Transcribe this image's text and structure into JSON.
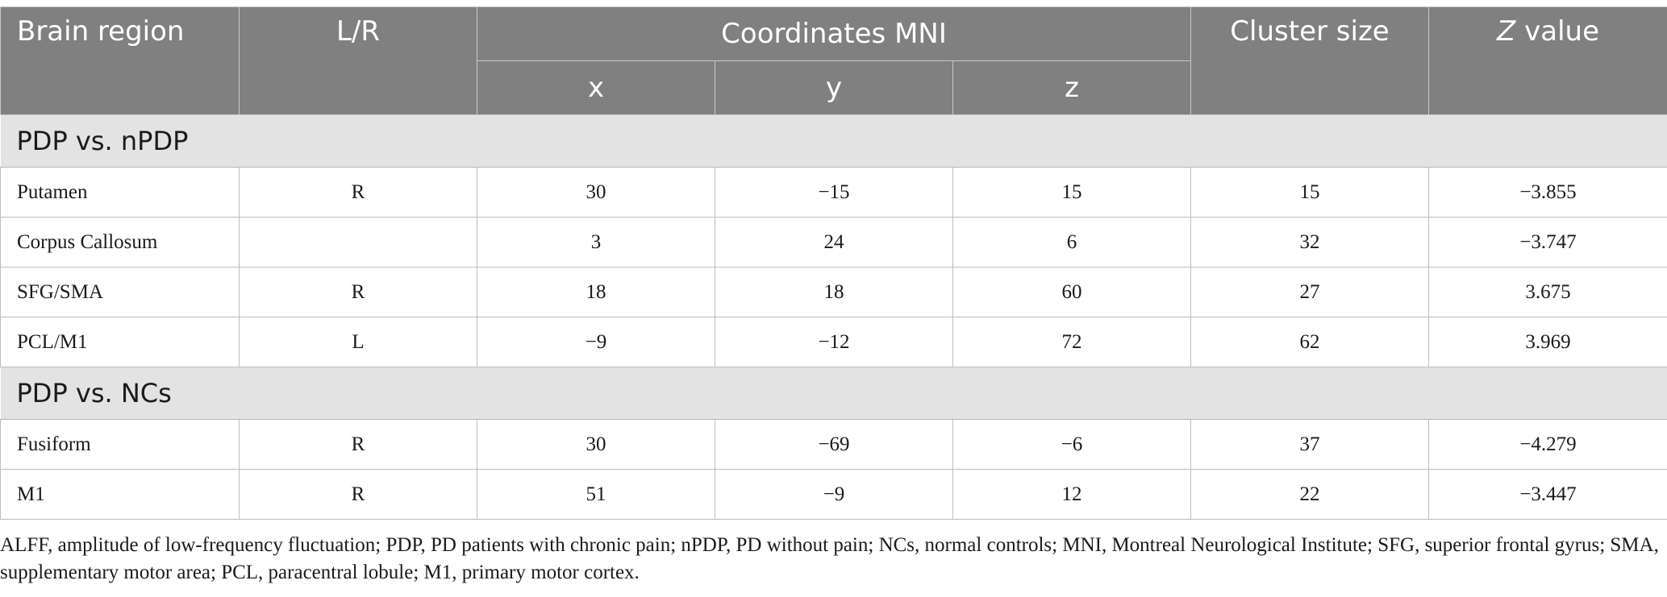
{
  "header": {
    "brain_region": "Brain region",
    "lr": "L/R",
    "coords": "Coordinates MNI",
    "x": "x",
    "y": "y",
    "z": "z",
    "cluster_size": "Cluster size",
    "z_value_italic": "Z",
    "z_value_rest": " value"
  },
  "groups": [
    {
      "label": "PDP vs. nPDP",
      "rows": [
        {
          "region": "Putamen",
          "lr": "R",
          "x": "30",
          "y": "−15",
          "z": "15",
          "cluster": "15",
          "zval": "−3.855"
        },
        {
          "region": "Corpus Callosum",
          "lr": "",
          "x": "3",
          "y": "24",
          "z": "6",
          "cluster": "32",
          "zval": "−3.747"
        },
        {
          "region": "SFG/SMA",
          "lr": "R",
          "x": "18",
          "y": "18",
          "z": "60",
          "cluster": "27",
          "zval": "3.675"
        },
        {
          "region": "PCL/M1",
          "lr": "L",
          "x": "−9",
          "y": "−12",
          "z": "72",
          "cluster": "62",
          "zval": "3.969"
        }
      ]
    },
    {
      "label": "PDP vs. NCs",
      "rows": [
        {
          "region": "Fusiform",
          "lr": "R",
          "x": "30",
          "y": "−69",
          "z": "−6",
          "cluster": "37",
          "zval": "−4.279"
        },
        {
          "region": "M1",
          "lr": "R",
          "x": "51",
          "y": "−9",
          "z": "12",
          "cluster": "22",
          "zval": "−3.447"
        }
      ]
    }
  ],
  "footnote": "ALFF, amplitude of low-frequency fluctuation; PDP, PD patients with chronic pain; nPDP, PD without pain; NCs, normal controls; MNI, Montreal Neurological Institute; SFG, superior frontal gyrus; SMA, supplementary motor area; PCL, paracentral lobule; M1, primary motor cortex.",
  "colors": {
    "header_bg": "#7f807f",
    "group_bg": "#e3e3e3",
    "border": "#bdbdbd"
  }
}
